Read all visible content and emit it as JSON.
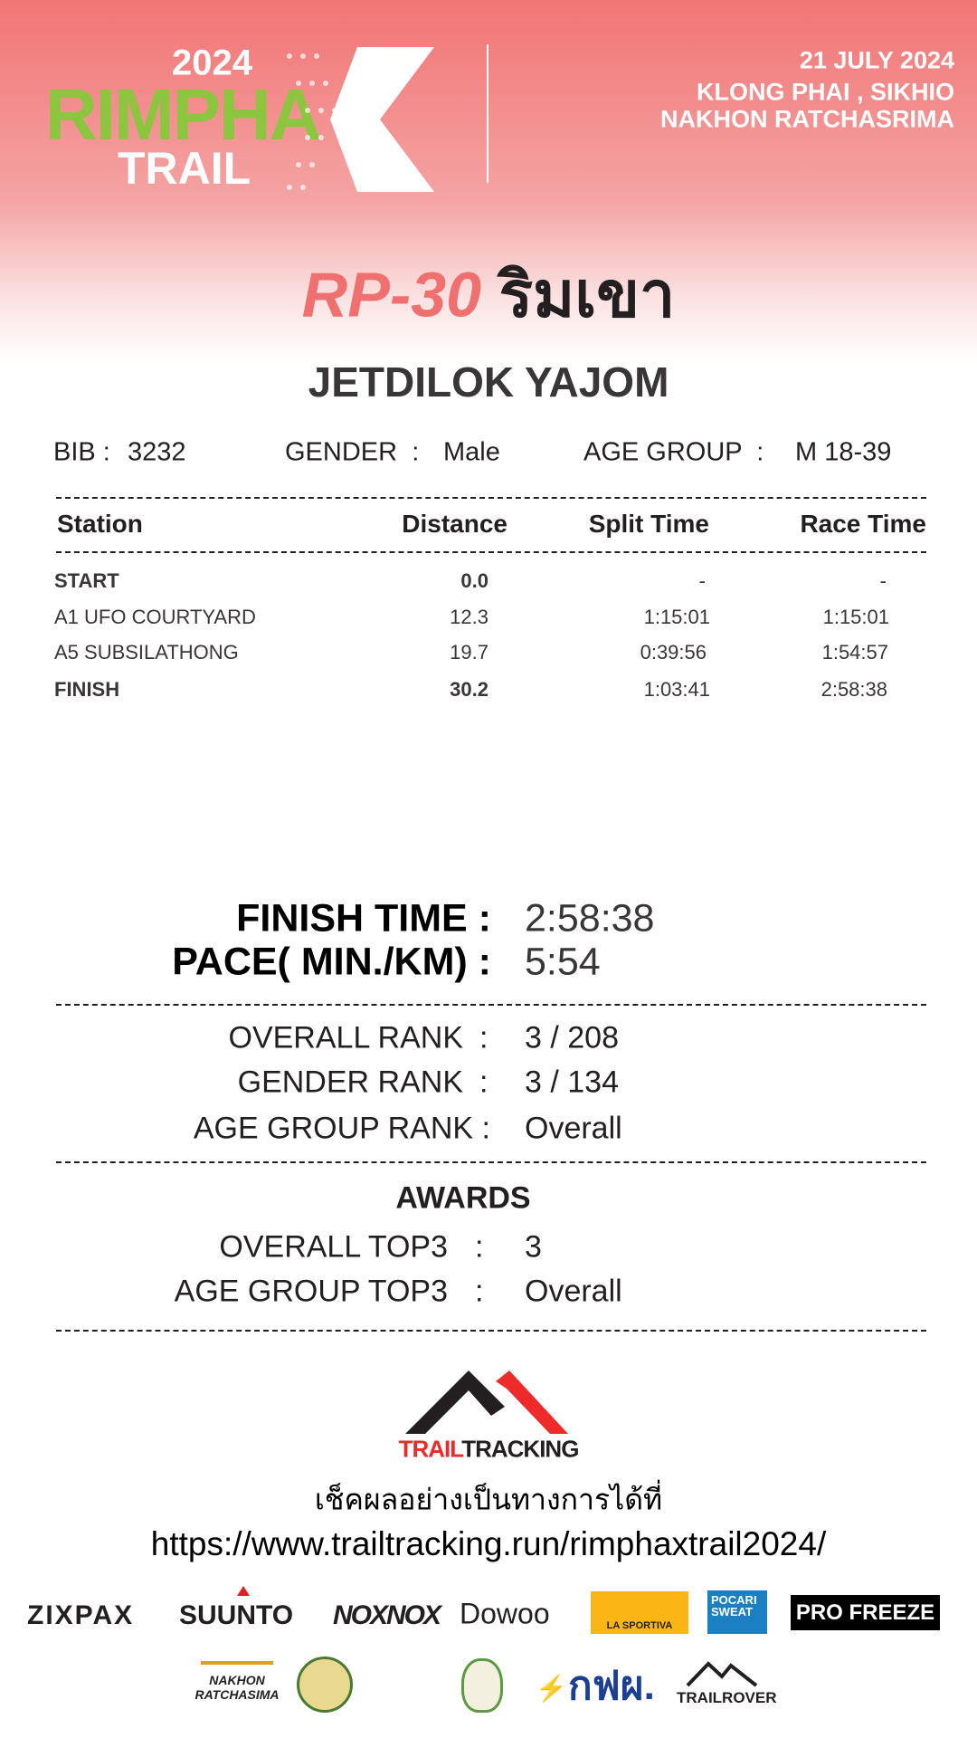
{
  "event": {
    "logo_year": "2024",
    "logo_name": "RIMPHA",
    "logo_sub": "TRAIL",
    "date": "21 JULY 2024",
    "location_line1": "KLONG PHAI , SIKHIO",
    "location_line2": "NAKHON RATCHASRIMA",
    "race_code": "RP-30",
    "race_name_thai": "ริมเขา",
    "colors": {
      "header": "#f27575",
      "brand_green": "#8cc63f",
      "race_code": "#f07070"
    }
  },
  "runner": {
    "name": "JETDILOK YAJOM",
    "bib_label": "BIB",
    "bib": "3232",
    "gender_label": "GENDER",
    "gender": "Male",
    "age_group_label": "AGE GROUP",
    "age_group": "M 18-39"
  },
  "splits": {
    "headers": [
      "Station",
      "Distance",
      "Split Time",
      "Race Time"
    ],
    "rows": [
      {
        "station": "START",
        "distance": "0.0",
        "split": "-",
        "race": "-"
      },
      {
        "station": "A1 UFO COURTYARD",
        "distance": "12.3",
        "split": "1:15:01",
        "race": "1:15:01"
      },
      {
        "station": "A5 SUBSILATHONG",
        "distance": "19.7",
        "split": "0:39:56",
        "race": "1:54:57"
      },
      {
        "station": "FINISH",
        "distance": "30.2",
        "split": "1:03:41",
        "race": "2:58:38"
      }
    ]
  },
  "result": {
    "finish_label": "FINISH TIME :",
    "finish_time": "2:58:38",
    "pace_label": "PACE( MIN./KM) :",
    "pace": "5:54"
  },
  "ranks": {
    "overall_label": "OVERALL RANK",
    "overall": "3 / 208",
    "gender_label": "GENDER RANK",
    "gender": "3 / 134",
    "age_label": "AGE GROUP RANK :",
    "age": "Overall",
    "colon": ":"
  },
  "awards": {
    "title": "AWARDS",
    "overall_label": "OVERALL TOP3",
    "overall": "3",
    "age_label": "AGE GROUP TOP3",
    "age": "Overall",
    "colon": ":"
  },
  "footer": {
    "tracker_logo_a": "TRAIL",
    "tracker_logo_b": "TRACKING",
    "check_text": "เช็คผลอย่างเป็นทางการได้ที่",
    "url": "https://www.trailtracking.run/rimphaxtrail2024/"
  },
  "sponsors": [
    "ZIXPAX",
    "SUUNTO",
    "NOXNOX",
    "Dowoo",
    "LA SPORTIVA",
    "POCARI SWEAT",
    "PRO FREEZE",
    "NAKHON RATCHASIMA",
    "กฟผ.",
    "TRAILROVER"
  ]
}
